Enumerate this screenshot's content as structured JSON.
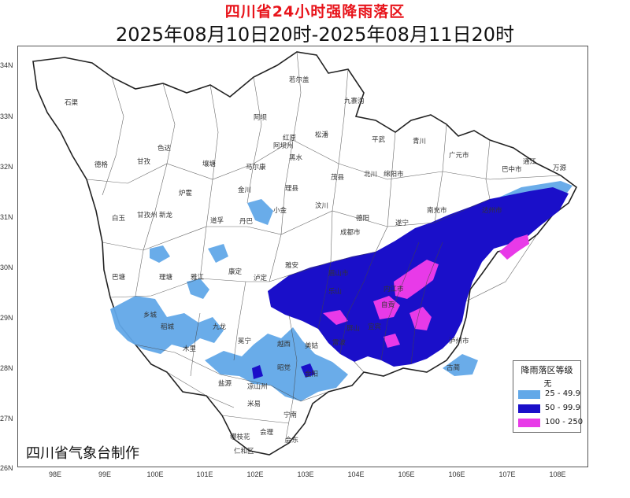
{
  "title": "四川省24小时强降雨落区",
  "subtitle": "2025年08月10日20时-2025年08月11日20时",
  "credit": "四川省气象台制作",
  "axes": {
    "lat_ticks": [
      "34N",
      "33N",
      "32N",
      "31N",
      "30N",
      "29N",
      "28N",
      "27N",
      "26N"
    ],
    "lon_ticks": [
      "98E",
      "99E",
      "100E",
      "101E",
      "102E",
      "103E",
      "104E",
      "105E",
      "106E",
      "107E",
      "108E"
    ]
  },
  "legend": {
    "title": "降雨落区等级",
    "items": [
      {
        "label": "无",
        "color": "#ffffff"
      },
      {
        "label": "25 - 49.9",
        "color": "#62a8e8"
      },
      {
        "label": "50 - 99.9",
        "color": "#1a0fc9"
      },
      {
        "label": "100 - 250",
        "color": "#e83ae8"
      }
    ]
  },
  "places": [
    {
      "name": "若尔盖"
    },
    {
      "name": "九寨沟"
    },
    {
      "name": "石渠"
    },
    {
      "name": "阿坝"
    },
    {
      "name": "红原"
    },
    {
      "name": "松潘"
    },
    {
      "name": "平武"
    },
    {
      "name": "青川"
    },
    {
      "name": "色达"
    },
    {
      "name": "阿坝州"
    },
    {
      "name": "德格"
    },
    {
      "name": "甘孜"
    },
    {
      "name": "炉霍"
    },
    {
      "name": "壤塘"
    },
    {
      "name": "马尔康"
    },
    {
      "name": "黑水"
    },
    {
      "name": "茂县"
    },
    {
      "name": "北川"
    },
    {
      "name": "绵阳市"
    },
    {
      "name": "广元市"
    },
    {
      "name": "巴中市"
    },
    {
      "name": "通江"
    },
    {
      "name": "万源"
    },
    {
      "name": "金川"
    },
    {
      "name": "理县"
    },
    {
      "name": "汶川"
    },
    {
      "name": "白玉"
    },
    {
      "name": "甘孜州"
    },
    {
      "name": "新龙"
    },
    {
      "name": "丹巴"
    },
    {
      "name": "小金"
    },
    {
      "name": "成都市"
    },
    {
      "name": "德阳"
    },
    {
      "name": "达州市"
    },
    {
      "name": "南充市"
    },
    {
      "name": "遂宁"
    },
    {
      "name": "巴塘"
    },
    {
      "name": "理塘"
    },
    {
      "name": "雅江"
    },
    {
      "name": "道孚"
    },
    {
      "name": "康定"
    },
    {
      "name": "泸定"
    },
    {
      "name": "雅安"
    },
    {
      "name": "眉山市"
    },
    {
      "name": "乐山"
    },
    {
      "name": "内江市"
    },
    {
      "name": "自贡"
    },
    {
      "name": "宜宾"
    },
    {
      "name": "泸州市"
    },
    {
      "name": "古蔺"
    },
    {
      "name": "乡城"
    },
    {
      "name": "稻城"
    },
    {
      "name": "九龙"
    },
    {
      "name": "冕宁"
    },
    {
      "name": "越西"
    },
    {
      "name": "美姑"
    },
    {
      "name": "雷波"
    },
    {
      "name": "屏山"
    },
    {
      "name": "木里"
    },
    {
      "name": "盐源"
    },
    {
      "name": "凉山州"
    },
    {
      "name": "昭觉"
    },
    {
      "name": "金阳"
    },
    {
      "name": "米易"
    },
    {
      "name": "宁南"
    },
    {
      "name": "会东"
    },
    {
      "name": "攀枝花"
    },
    {
      "name": "会理"
    },
    {
      "name": "仁和区"
    }
  ]
}
